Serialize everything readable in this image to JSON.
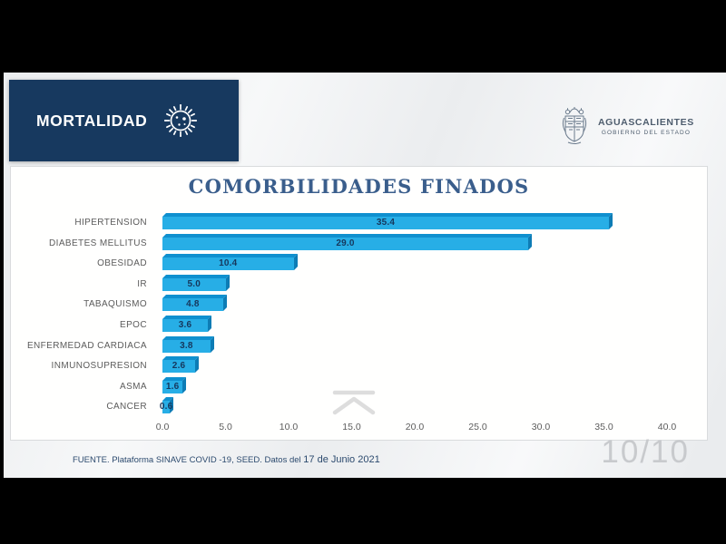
{
  "header": {
    "title": "MORTALIDAD"
  },
  "logo": {
    "name": "AGUASCALIENTES",
    "subtitle": "GOBIERNO DEL ESTADO"
  },
  "chart_data": {
    "type": "bar",
    "orientation": "horizontal",
    "title": "COMORBILIDADES FINADOS",
    "categories": [
      "HIPERTENSION",
      "DIABETES MELLITUS",
      "OBESIDAD",
      "IR",
      "TABAQUISMO",
      "EPOC",
      "ENFERMEDAD CARDIACA",
      "INMUNOSUPRESION",
      "ASMA",
      "CANCER"
    ],
    "values": [
      35.4,
      29.0,
      10.4,
      5.0,
      4.8,
      3.6,
      3.8,
      2.6,
      1.6,
      0.6
    ],
    "value_labels": [
      "35.4",
      "29.0",
      "10.4",
      "5.0",
      "4.8",
      "3.6",
      "3.8",
      "2.6",
      "1.6",
      "0.6"
    ],
    "xlabel": "",
    "ylabel": "",
    "xlim": [
      0,
      40
    ],
    "xticks": [
      "0.0",
      "5.0",
      "10.0",
      "15.0",
      "20.0",
      "25.0",
      "30.0",
      "35.0",
      "40.0"
    ],
    "grid": false,
    "legend": false,
    "style": "3d-horizontal-bars",
    "colors": {
      "bar_face": "#27aee6",
      "bar_top": "#0f90cf",
      "bar_side": "#0d7cb5",
      "value_label": "#16375c",
      "category_label": "#5b5b5b",
      "tick_label": "#5c5c5c",
      "title": "#3a5e8c"
    }
  },
  "footer": {
    "source_prefix": "FUENTE. Plataforma SINAVE COVID -19, SEED. Datos del",
    "source_date": "17 de Junio 2021"
  },
  "page_indicator": "10/10",
  "theme": {
    "header_bg": "#17395f",
    "panel_bg": "#ffffff",
    "slide_bg": "#eef0f2"
  }
}
